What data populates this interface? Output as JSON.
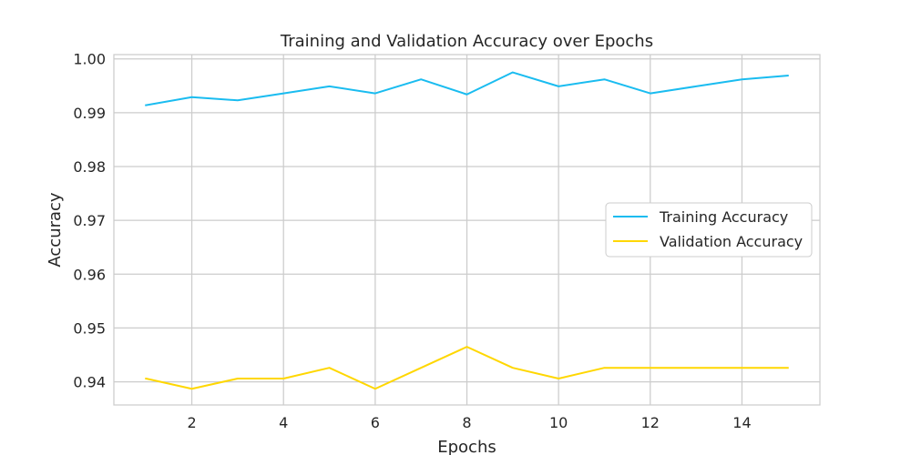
{
  "chart_data": {
    "type": "line",
    "title": "Training and Validation Accuracy over Epochs",
    "xlabel": "Epochs",
    "ylabel": "Accuracy",
    "xlim": [
      0.3,
      15.7
    ],
    "ylim": [
      0.9357,
      1.0008
    ],
    "xticks": [
      2,
      4,
      6,
      8,
      10,
      12,
      14
    ],
    "xtick_labels": [
      "2",
      "4",
      "6",
      "8",
      "10",
      "12",
      "14"
    ],
    "yticks": [
      0.94,
      0.95,
      0.96,
      0.97,
      0.98,
      0.99,
      1.0
    ],
    "ytick_labels": [
      "0.94",
      "0.95",
      "0.96",
      "0.97",
      "0.98",
      "0.99",
      "1.00"
    ],
    "grid": true,
    "legend_position": "center-right",
    "x": [
      1,
      2,
      3,
      4,
      5,
      6,
      7,
      8,
      9,
      10,
      11,
      12,
      13,
      14,
      15
    ],
    "series": [
      {
        "name": "Training Accuracy",
        "color": "#1abcf0",
        "values": [
          0.9914,
          0.9929,
          0.9923,
          0.9936,
          0.9949,
          0.9936,
          0.9962,
          0.9934,
          0.9975,
          0.9949,
          0.9962,
          0.9936,
          0.9949,
          0.9962,
          0.9969
        ]
      },
      {
        "name": "Validation Accuracy",
        "color": "#ffd700",
        "values": [
          0.9406,
          0.9387,
          0.9406,
          0.9406,
          0.9426,
          0.9387,
          0.9426,
          0.9465,
          0.9426,
          0.9406,
          0.9426,
          0.9426,
          0.9426,
          0.9426,
          0.9426
        ]
      }
    ]
  }
}
